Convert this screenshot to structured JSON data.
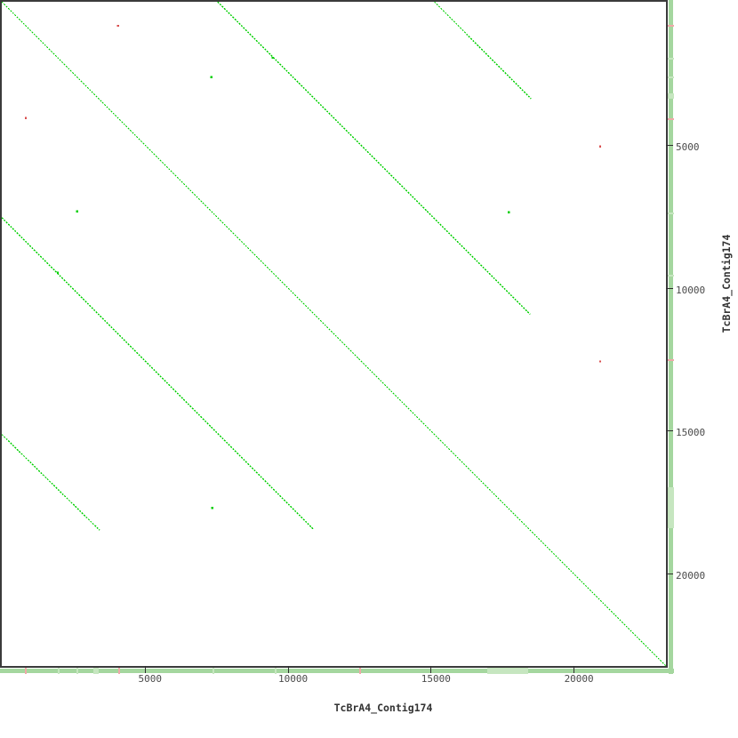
{
  "chart_data": {
    "type": "scatter",
    "subtype": "self-alignment-dotplot",
    "title": "",
    "x_sequence": "TcBrA4_Contig174",
    "y_sequence": "TcBrA4_Contig174",
    "axis_max": 23230,
    "x_ticks": [
      5000,
      10000,
      15000,
      20000
    ],
    "y_ticks": [
      5000,
      10000,
      15000,
      20000
    ],
    "grid": false,
    "legend": false,
    "colors": {
      "forward_match": "#00cf00",
      "reverse_match": "#d94f4f",
      "reverse_match_soft": "#efa8a8",
      "scale_bar": "#a5d79f",
      "scale_bar_band": "#c6e6c0",
      "plot_border": "#3b3b3b",
      "tick_label": "#4a4a4a",
      "axis_title": "#333333"
    },
    "forward_segments": [
      [
        0,
        0,
        23230,
        23230
      ],
      [
        7550,
        0,
        18480,
        10930
      ],
      [
        0,
        7550,
        10900,
        18450
      ],
      [
        15130,
        0,
        18510,
        3390
      ],
      [
        0,
        15130,
        3420,
        18480
      ]
    ],
    "forward_dots": [
      [
        7330,
        2640
      ],
      [
        2640,
        7330
      ],
      [
        17730,
        7360
      ],
      [
        7360,
        17700
      ],
      [
        9470,
        1960
      ],
      [
        1960,
        9470
      ]
    ],
    "reverse_dots": [
      [
        4070,
        840
      ],
      [
        840,
        4070
      ],
      [
        20930,
        5060
      ],
      [
        20930,
        12580
      ]
    ],
    "scale_bar_marks": {
      "reverse": [
        810,
        4070,
        12490
      ],
      "forward": [
        1960,
        2610,
        7360,
        9540
      ],
      "bands": [
        [
          16990,
          18420
        ],
        [
          3200,
          3390
        ]
      ]
    }
  }
}
